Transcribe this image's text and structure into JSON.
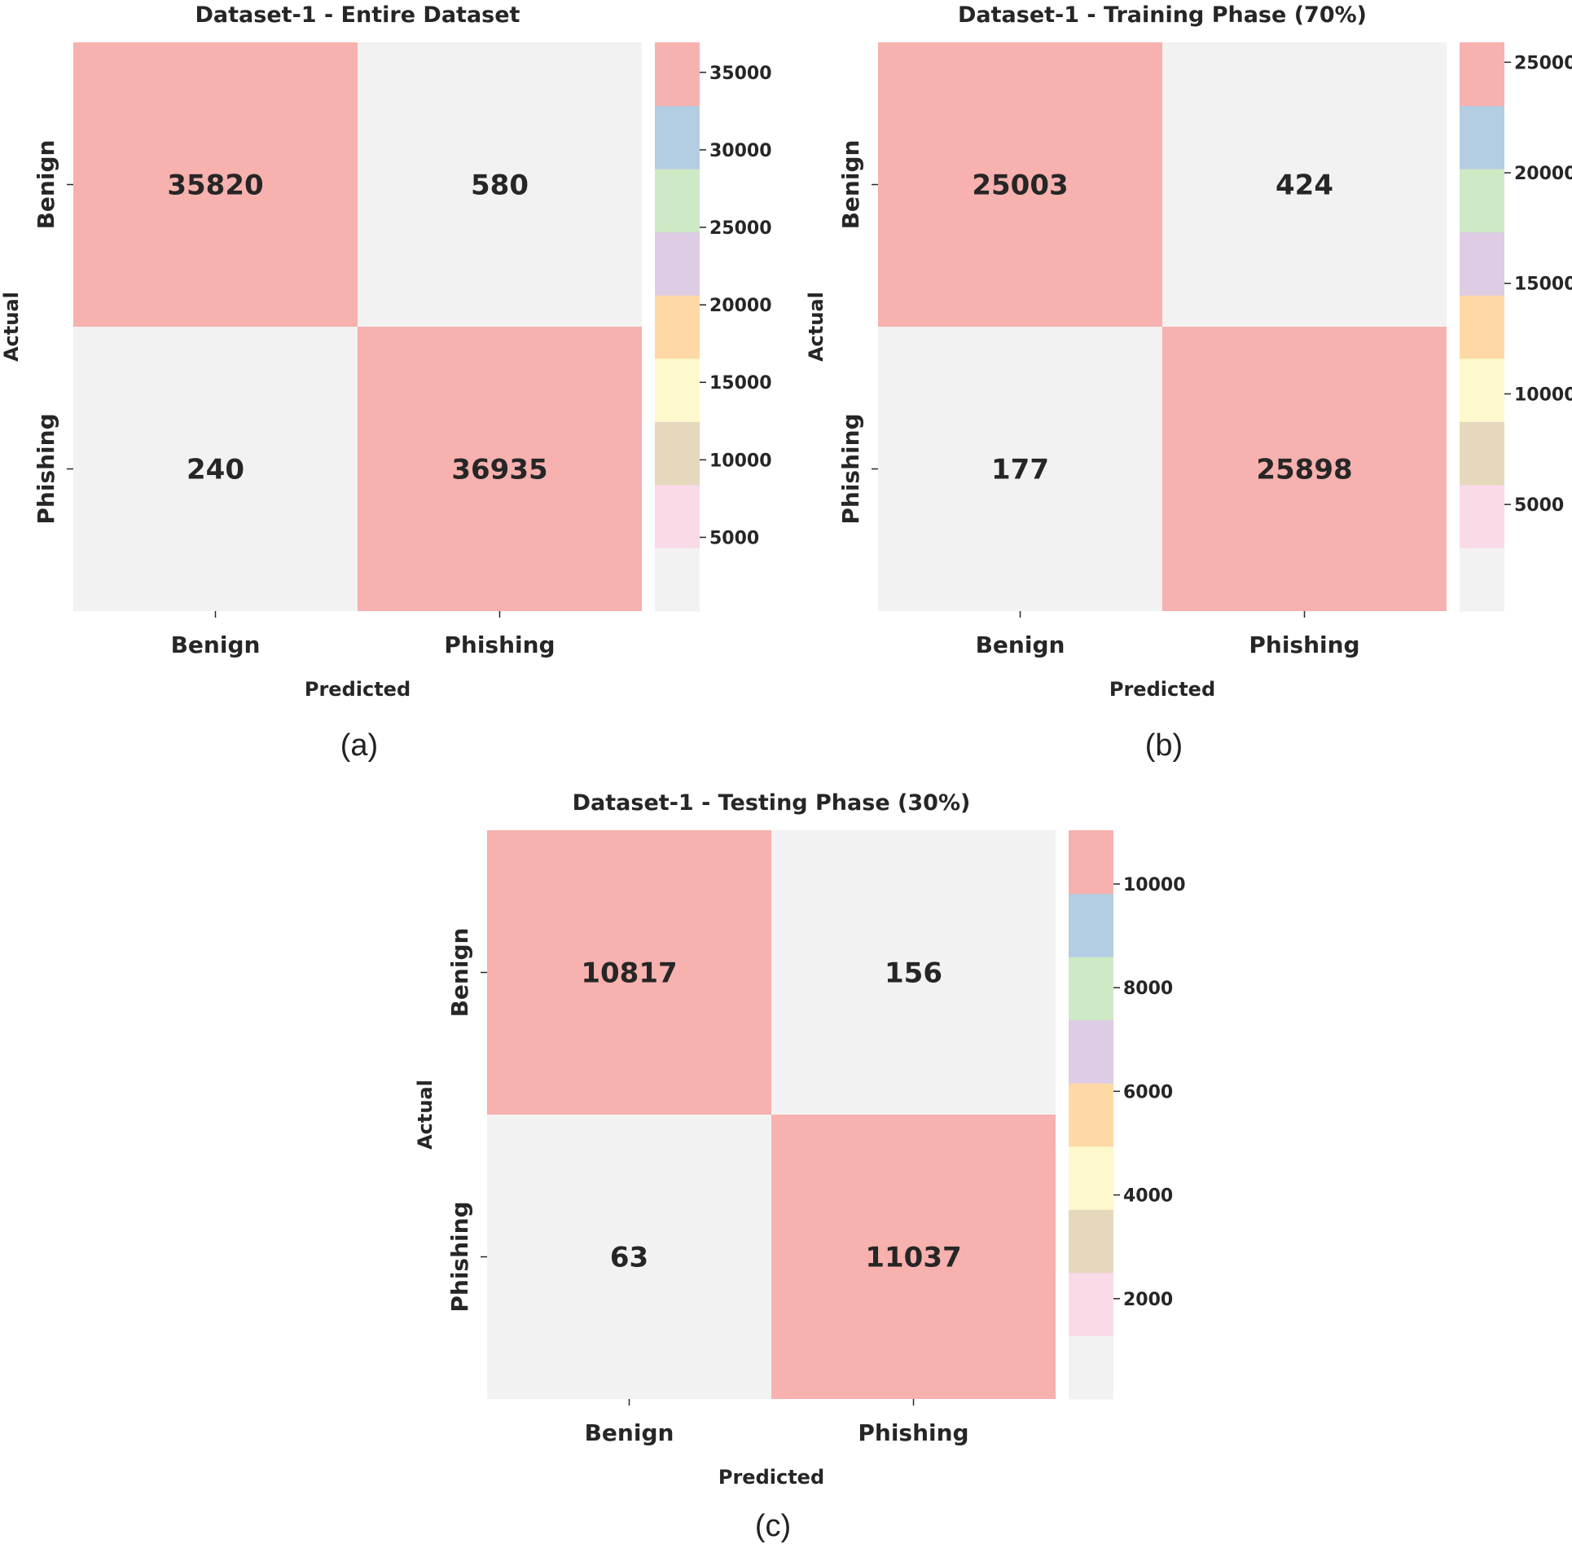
{
  "chart_data": [
    {
      "type": "heatmap",
      "panel_label": "(a)",
      "title": "Dataset-1 - Entire Dataset",
      "xlabel": "Predicted",
      "ylabel": "Actual",
      "x_categories": [
        "Benign",
        "Phishing"
      ],
      "y_categories": [
        "Benign",
        "Phishing"
      ],
      "values": [
        [
          35820,
          580
        ],
        [
          240,
          36935
        ]
      ],
      "colorbar": {
        "range": [
          240,
          36935
        ],
        "ticks": [
          5000,
          10000,
          15000,
          20000,
          25000,
          30000,
          35000
        ]
      }
    },
    {
      "type": "heatmap",
      "panel_label": "(b)",
      "title": "Dataset-1 - Training Phase (70%)",
      "xlabel": "Predicted",
      "ylabel": "Actual",
      "x_categories": [
        "Benign",
        "Phishing"
      ],
      "y_categories": [
        "Benign",
        "Phishing"
      ],
      "values": [
        [
          25003,
          424
        ],
        [
          177,
          25898
        ]
      ],
      "colorbar": {
        "range": [
          177,
          25898
        ],
        "ticks": [
          5000,
          10000,
          15000,
          20000,
          25000
        ]
      }
    },
    {
      "type": "heatmap",
      "panel_label": "(c)",
      "title": "Dataset-1 - Testing Phase (30%)",
      "xlabel": "Predicted",
      "ylabel": "Actual",
      "x_categories": [
        "Benign",
        "Phishing"
      ],
      "y_categories": [
        "Benign",
        "Phishing"
      ],
      "values": [
        [
          10817,
          156
        ],
        [
          63,
          11037
        ]
      ],
      "colorbar": {
        "range": [
          63,
          11037
        ],
        "ticks": [
          2000,
          4000,
          6000,
          8000,
          10000
        ]
      }
    }
  ],
  "colormap": [
    "#f2f2f2",
    "#fadae8",
    "#e5d8bd",
    "#fdf9cc",
    "#fed9a6",
    "#decbe4",
    "#cde9c5",
    "#b3cde3",
    "#f7b1ae"
  ]
}
